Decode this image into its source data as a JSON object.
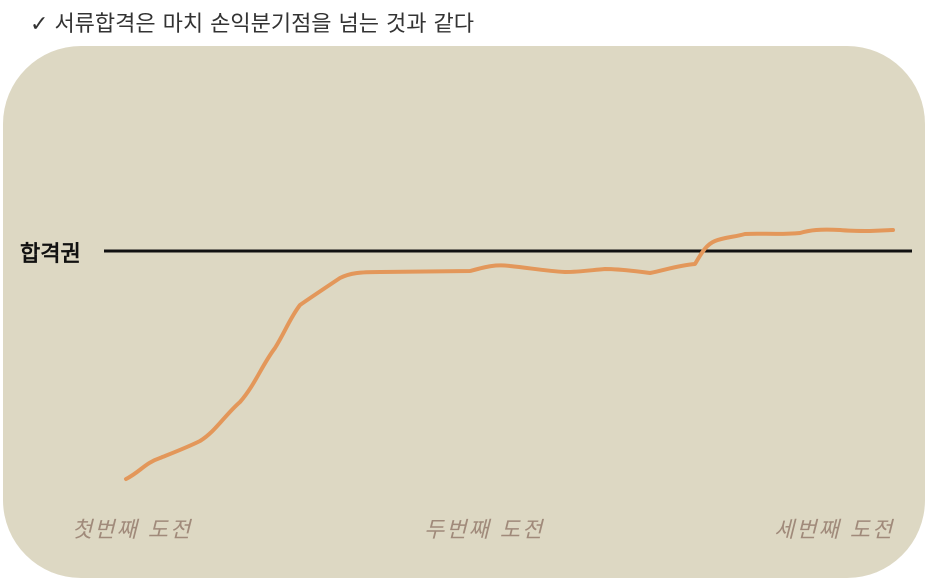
{
  "title": {
    "check": "✓",
    "text": "서류합격은 마치 손익분기점을 넘는 것과 같다"
  },
  "threshold": {
    "label": "합격권"
  },
  "stages": [
    {
      "label": "첫번째 도전"
    },
    {
      "label": "두번째 도전"
    },
    {
      "label": "세번째 도전"
    }
  ],
  "colors": {
    "panel": "#ddd8c3",
    "curve": "#e3975a",
    "threshold_line": "#111111",
    "stage_text": "#a08a7a"
  }
}
